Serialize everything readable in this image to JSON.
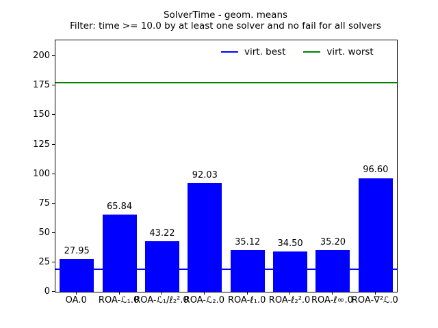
{
  "chart_data": {
    "type": "bar",
    "title": "SolverTime - geom. means",
    "subtitle": "Filter: time >= 10.0 by at least one solver and no fail for all solvers",
    "categories": [
      "OA.0",
      "ROA-ℒ₁.0",
      "ROA-ℒ₁/ℓ₂².0",
      "ROA-ℒ₂.0",
      "ROA-ℓ₁.0",
      "ROA-ℓ₂².0",
      "ROA-ℓ∞.0",
      "ROA-∇²ℒ.0"
    ],
    "values": [
      27.95,
      65.84,
      43.22,
      92.03,
      35.12,
      34.5,
      35.2,
      96.6
    ],
    "bar_value_labels": [
      "27.95",
      "65.84",
      "43.22",
      "92.03",
      "35.12",
      "34.50",
      "35.20",
      "96.60"
    ],
    "bar_color": "#0000ff",
    "xlabel": "",
    "ylabel": "",
    "yticks": [
      0,
      25,
      50,
      75,
      100,
      125,
      150,
      175,
      200
    ],
    "ylim": [
      0,
      213.5
    ],
    "grid": false,
    "hlines": [
      {
        "name": "virt. best",
        "value": 19.0,
        "color": "#0000ff"
      },
      {
        "name": "virt. worst",
        "value": 177.5,
        "color": "#008000"
      }
    ],
    "legend": {
      "position": "upper center, horizontal, no frame",
      "entries": [
        {
          "label": "virt. best",
          "color": "#0000ff"
        },
        {
          "label": "virt. worst",
          "color": "#008000"
        }
      ]
    }
  },
  "colors": {
    "background": "#ffffff",
    "axis": "#000000",
    "bar": "#0000ff",
    "virt_best_line": "#0000ff",
    "virt_worst_line": "#008000"
  }
}
